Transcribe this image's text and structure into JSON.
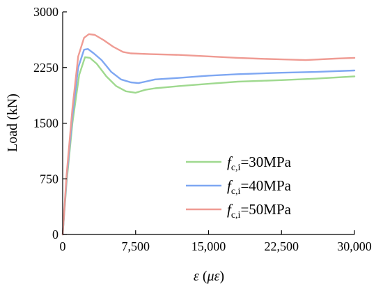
{
  "chart_data": {
    "type": "line",
    "title": "",
    "xlabel": "ε (με)",
    "ylabel": "Load (kN)",
    "xlim": [
      0,
      30000
    ],
    "ylim": [
      0,
      3000
    ],
    "x_ticks": [
      0,
      7500,
      15000,
      22500,
      30000
    ],
    "x_tick_labels": [
      "0",
      "7,500",
      "15,000",
      "22,500",
      "30,000"
    ],
    "y_ticks": [
      0,
      750,
      1500,
      2250,
      3000
    ],
    "y_tick_labels": [
      "0",
      "750",
      "1500",
      "2250",
      "3000"
    ],
    "grid": false,
    "legend_position": "bottom-right",
    "series": [
      {
        "name": "fc,i=30MPa",
        "legend_symbol": "f",
        "legend_subscript": "c,i",
        "legend_suffix": "=30MPa",
        "color": "#9fd98f",
        "x": [
          0,
          400,
          1000,
          1700,
          2300,
          2800,
          3500,
          4500,
          5500,
          6500,
          7500,
          8500,
          9500,
          12000,
          15000,
          18000,
          22500,
          26000,
          30000
        ],
        "y": [
          0,
          700,
          1500,
          2150,
          2390,
          2380,
          2300,
          2130,
          2000,
          1930,
          1910,
          1950,
          1970,
          2000,
          2030,
          2060,
          2080,
          2100,
          2130
        ]
      },
      {
        "name": "fc,i=40MPa",
        "legend_symbol": "f",
        "legend_subscript": "c,i",
        "legend_suffix": "=40MPa",
        "color": "#7ea7f2",
        "x": [
          0,
          400,
          1000,
          1600,
          2200,
          2600,
          3200,
          4000,
          5000,
          6000,
          7000,
          7800,
          8500,
          9500,
          12000,
          15000,
          18000,
          22500,
          26000,
          30000
        ],
        "y": [
          0,
          750,
          1600,
          2250,
          2490,
          2500,
          2440,
          2350,
          2190,
          2090,
          2050,
          2040,
          2060,
          2090,
          2110,
          2140,
          2160,
          2180,
          2190,
          2210
        ]
      },
      {
        "name": "fc,i=50MPa",
        "legend_symbol": "f",
        "legend_subscript": "c,i",
        "legend_suffix": "=50MPa",
        "color": "#ef9b93",
        "x": [
          0,
          400,
          1000,
          1600,
          2200,
          2700,
          3300,
          4200,
          5200,
          6200,
          7000,
          9000,
          12000,
          15000,
          18000,
          20000,
          22500,
          25000,
          28000,
          30000
        ],
        "y": [
          0,
          800,
          1700,
          2400,
          2650,
          2700,
          2690,
          2620,
          2530,
          2460,
          2440,
          2430,
          2420,
          2400,
          2380,
          2370,
          2360,
          2350,
          2370,
          2380
        ]
      }
    ]
  }
}
